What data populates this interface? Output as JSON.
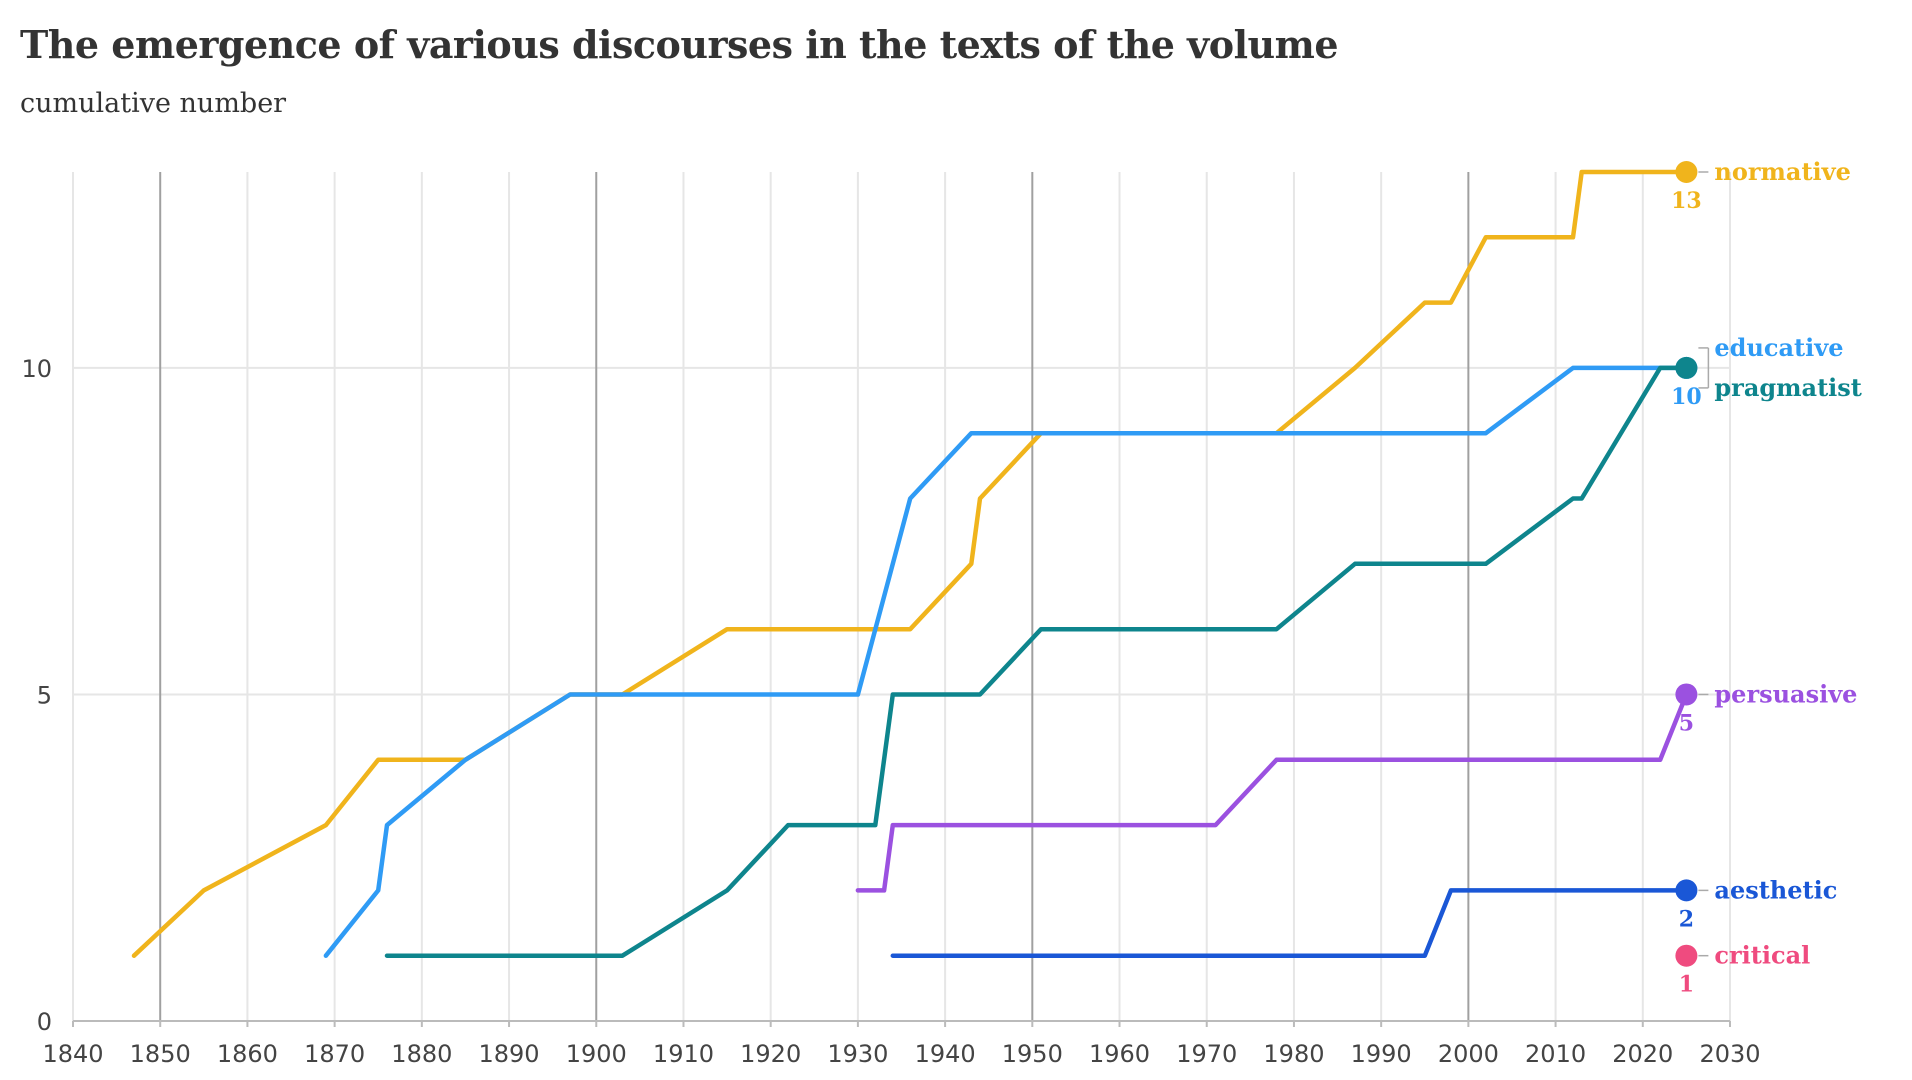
{
  "chart_data": {
    "type": "line",
    "title": "The emergence of various discourses in the texts of the volume",
    "subtitle": "cumulative number",
    "xlabel": "",
    "ylabel": "",
    "xlim": [
      1840,
      2030
    ],
    "ylim": [
      0,
      13
    ],
    "x_ticks": [
      1840,
      1850,
      1860,
      1870,
      1880,
      1890,
      1900,
      1910,
      1920,
      1930,
      1940,
      1950,
      1960,
      1970,
      1980,
      1990,
      2000,
      2010,
      2020,
      2030
    ],
    "y_ticks": [
      0,
      5,
      10
    ],
    "highlight_gridlines": [
      1850,
      1900,
      1950,
      2000
    ],
    "grid": true,
    "series": [
      {
        "name": "normative",
        "color": "#f0b41c",
        "end_label": "13",
        "points": [
          [
            1847,
            1
          ],
          [
            1855,
            2
          ],
          [
            1869,
            3
          ],
          [
            1875,
            4
          ],
          [
            1885,
            4
          ],
          [
            1897,
            5
          ],
          [
            1903,
            5
          ],
          [
            1915,
            6
          ],
          [
            1936,
            6
          ],
          [
            1943,
            7
          ],
          [
            1944,
            8
          ],
          [
            1951,
            9
          ],
          [
            1978,
            9
          ],
          [
            1987,
            10
          ],
          [
            1995,
            11
          ],
          [
            1998,
            11
          ],
          [
            2002,
            12
          ],
          [
            2012,
            12
          ],
          [
            2013,
            13
          ],
          [
            2025,
            13
          ]
        ]
      },
      {
        "name": "educative",
        "color": "#2f9bf5",
        "end_label": "10",
        "points": [
          [
            1869,
            1
          ],
          [
            1875,
            2
          ],
          [
            1876,
            3
          ],
          [
            1885,
            4
          ],
          [
            1897,
            5
          ],
          [
            1930,
            5
          ],
          [
            1934,
            7
          ],
          [
            1936,
            8
          ],
          [
            1943,
            9
          ],
          [
            1978,
            9
          ],
          [
            2002,
            9
          ],
          [
            2012,
            10
          ],
          [
            2025,
            10
          ]
        ]
      },
      {
        "name": "pragmatist",
        "color": "#0e858d",
        "end_label": "",
        "points": [
          [
            1876,
            1
          ],
          [
            1903,
            1
          ],
          [
            1915,
            2
          ],
          [
            1922,
            3
          ],
          [
            1932,
            3
          ],
          [
            1934,
            5
          ],
          [
            1944,
            5
          ],
          [
            1951,
            6
          ],
          [
            1978,
            6
          ],
          [
            1987,
            7
          ],
          [
            2002,
            7
          ],
          [
            2012,
            8
          ],
          [
            2013,
            8
          ],
          [
            2022,
            10
          ],
          [
            2025,
            10
          ]
        ]
      },
      {
        "name": "persuasive",
        "color": "#9b51e0",
        "end_label": "5",
        "points": [
          [
            1930,
            2
          ],
          [
            1933,
            2
          ],
          [
            1934,
            3
          ],
          [
            1971,
            3
          ],
          [
            1978,
            4
          ],
          [
            2022,
            4
          ],
          [
            2025,
            5
          ]
        ]
      },
      {
        "name": "aesthetic",
        "color": "#1a57d6",
        "end_label": "2",
        "points": [
          [
            1934,
            1
          ],
          [
            1995,
            1
          ],
          [
            1998,
            2
          ],
          [
            2025,
            2
          ]
        ]
      },
      {
        "name": "critical",
        "color": "#ef4b7f",
        "end_label": "1",
        "points": [
          [
            2025,
            1
          ]
        ]
      }
    ]
  }
}
